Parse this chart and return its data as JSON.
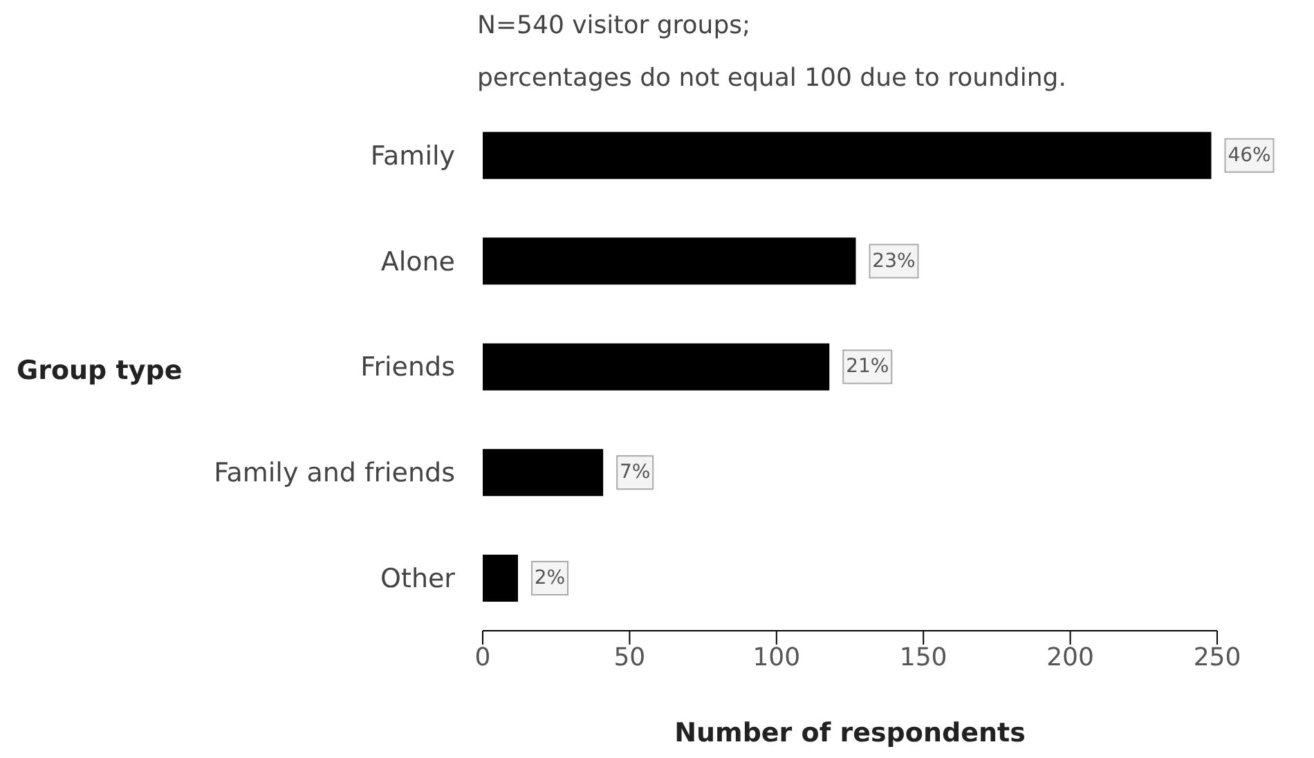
{
  "chart_data": {
    "type": "bar",
    "orientation": "horizontal",
    "title": "N=540 visitor groups;",
    "subtitle": "percentages do not equal 100 due to rounding.",
    "xlabel": "Number of respondents",
    "ylabel": "Group type",
    "categories": [
      "Family",
      "Alone",
      "Friends",
      "Family and friends",
      "Other"
    ],
    "values": [
      248,
      127,
      118,
      41,
      12
    ],
    "color": "#000000",
    "annotations": [
      {
        "text": "46%",
        "x": 248,
        "y": "Family"
      },
      {
        "text": "23%",
        "x": 127,
        "y": "Alone"
      },
      {
        "text": "21%",
        "x": 118,
        "y": "Friends"
      },
      {
        "text": "7%",
        "x": 41,
        "y": "Family and friends"
      },
      {
        "text": "2%",
        "x": 12,
        "y": "Other"
      }
    ],
    "xlim": [
      0,
      250
    ],
    "xticks": [
      0,
      50,
      100,
      150,
      200,
      250
    ],
    "grid": false,
    "legend": false
  }
}
